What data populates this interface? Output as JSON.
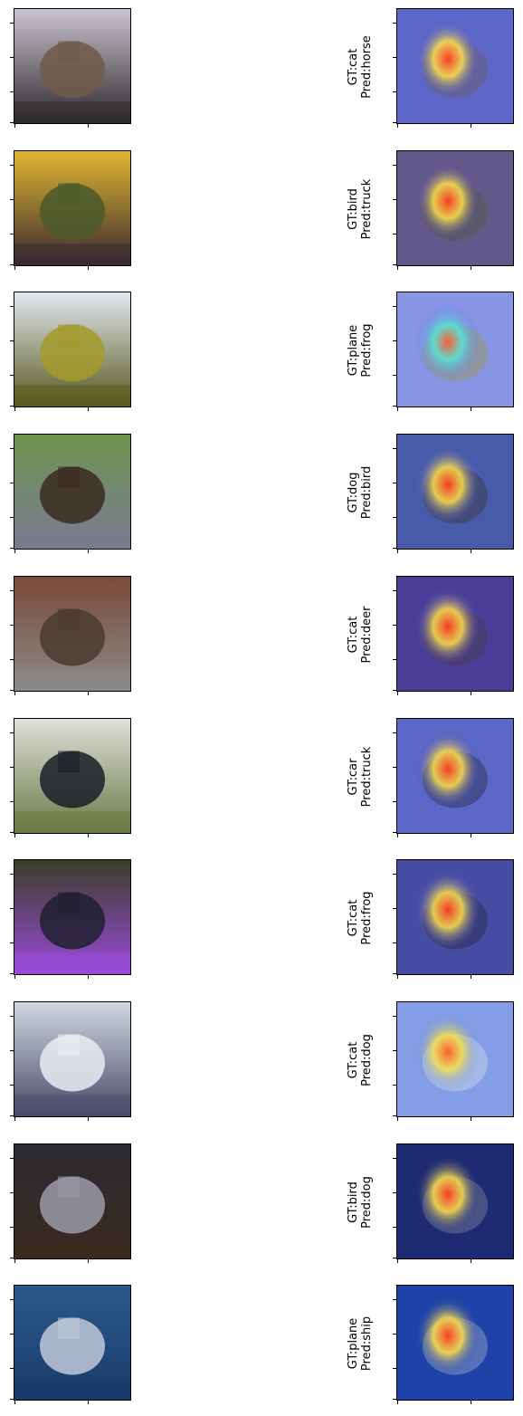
{
  "rows": [
    {
      "gt": "GT:cat",
      "pred": "Pred:horse",
      "image_subject": "horse",
      "left_colors": [
        "#c9c4cf",
        "#6f5a4a",
        "#2f2a2e"
      ],
      "heat_colors": [
        "#ff3b1f",
        "#ffe24a",
        "#3a48c8"
      ]
    },
    {
      "gt": "GT:bird",
      "pred": "Pred:truck",
      "image_subject": "field-post",
      "left_colors": [
        "#e0b531",
        "#4a5a2a",
        "#3a2a30"
      ],
      "heat_colors": [
        "#ff3b1f",
        "#ffe24a",
        "#3a3aa8"
      ]
    },
    {
      "gt": "GT:plane",
      "pred": "Pred:frog",
      "image_subject": "airplane",
      "left_colors": [
        "#e3e8ef",
        "#a49a2c",
        "#5a5a20"
      ],
      "heat_colors": [
        "#ff5a2a",
        "#56e6d6",
        "#6a78e0"
      ]
    },
    {
      "gt": "GT:dog",
      "pred": "Pred:bird",
      "image_subject": "dog",
      "left_colors": [
        "#6e9450",
        "#3a2a20",
        "#7a7a90"
      ],
      "heat_colors": [
        "#ff3b1f",
        "#ffe24a",
        "#3a48c8"
      ]
    },
    {
      "gt": "GT:cat",
      "pred": "Pred:deer",
      "image_subject": "cat",
      "left_colors": [
        "#7a4a3a",
        "#4a3a30",
        "#8a8a8a"
      ],
      "heat_colors": [
        "#ff3b1f",
        "#ffe24a",
        "#3a3ab8"
      ]
    },
    {
      "gt": "GT:car",
      "pred": "Pred:truck",
      "image_subject": "car",
      "left_colors": [
        "#dfe0da",
        "#1a1e28",
        "#6b7a45"
      ],
      "heat_colors": [
        "#ff3b1f",
        "#ffe24a",
        "#3040c0"
      ]
    },
    {
      "gt": "GT:cat",
      "pred": "Pred:frog",
      "image_subject": "cat",
      "left_colors": [
        "#3a3e2a",
        "#202030",
        "#9a4ad8"
      ],
      "heat_colors": [
        "#ff3b1f",
        "#ffe24a",
        "#4a50c8"
      ]
    },
    {
      "gt": "GT:cat",
      "pred": "Pred:dog",
      "image_subject": "cat",
      "left_colors": [
        "#cfd7e0",
        "#e8ecf2",
        "#4a4a6a"
      ],
      "heat_colors": [
        "#ff5a2a",
        "#f6e24a",
        "#6a8ae8"
      ]
    },
    {
      "gt": "GT:bird",
      "pred": "Pred:dog",
      "image_subject": "owl",
      "left_colors": [
        "#2a2a30",
        "#9a9aa8",
        "#3a2a20"
      ],
      "heat_colors": [
        "#ff3b1f",
        "#ffe24a",
        "#1a2a88"
      ]
    },
    {
      "gt": "GT:plane",
      "pred": "Pred:ship",
      "image_subject": "plane",
      "left_colors": [
        "#2a5a8a",
        "#c0c8d8",
        "#1a3a6a"
      ],
      "heat_colors": [
        "#ff3b1f",
        "#ffe24a",
        "#1a3ab0"
      ]
    }
  ]
}
